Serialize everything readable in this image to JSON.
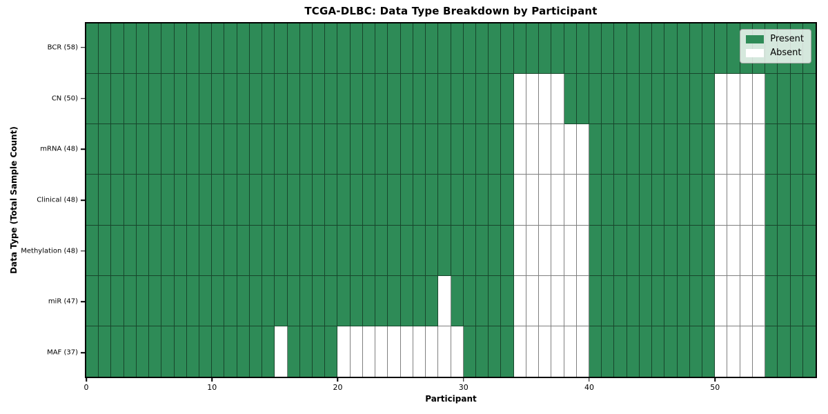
{
  "title": "TCGA-DLBC: Data Type Breakdown by Participant",
  "xlabel": "Participant",
  "ylabel": "Data Type (Total Sample Count)",
  "legend": {
    "present_label": "Present",
    "absent_label": "Absent"
  },
  "colors": {
    "present": "#2E8B57",
    "absent": "#FFFFFF",
    "cell_border": "rgba(0,0,0,0.5)",
    "spine": "#000000",
    "legend_bg": "rgba(255,255,255,0.8)",
    "legend_border": "#A6A6A6"
  },
  "chart_data": {
    "type": "heatmap",
    "title": "TCGA-DLBC: Data Type Breakdown by Participant",
    "xlabel": "Participant",
    "ylabel": "Data Type (Total Sample Count)",
    "x_ticks": [
      0,
      10,
      20,
      30,
      40,
      50
    ],
    "x_range": [
      0,
      58
    ],
    "n_participants": 58,
    "cell_values": {
      "present": 1,
      "absent": 0
    },
    "legend_entries": [
      {
        "label": "Present",
        "color": "#2E8B57"
      },
      {
        "label": "Absent",
        "color": "#FFFFFF"
      }
    ],
    "rows": [
      {
        "data_type": "BCR",
        "label": "BCR (58)",
        "total": 58,
        "absent_participants": []
      },
      {
        "data_type": "CN",
        "label": "CN (50)",
        "total": 50,
        "absent_participants": [
          34,
          35,
          36,
          37,
          50,
          51,
          52,
          53
        ]
      },
      {
        "data_type": "mRNA",
        "label": "mRNA (48)",
        "total": 48,
        "absent_participants": [
          34,
          35,
          36,
          37,
          38,
          39,
          50,
          51,
          52,
          53
        ]
      },
      {
        "data_type": "Clinical",
        "label": "Clinical (48)",
        "total": 48,
        "absent_participants": [
          34,
          35,
          36,
          37,
          38,
          39,
          50,
          51,
          52,
          53
        ]
      },
      {
        "data_type": "Methylation",
        "label": "Methylation (48)",
        "total": 48,
        "absent_participants": [
          34,
          35,
          36,
          37,
          38,
          39,
          50,
          51,
          52,
          53
        ]
      },
      {
        "data_type": "miR",
        "label": "miR (47)",
        "total": 47,
        "absent_participants": [
          28,
          34,
          35,
          36,
          37,
          38,
          39,
          50,
          51,
          52,
          53
        ]
      },
      {
        "data_type": "MAF",
        "label": "MAF (37)",
        "total": 37,
        "absent_participants": [
          15,
          20,
          21,
          22,
          23,
          24,
          25,
          26,
          27,
          28,
          29,
          34,
          35,
          36,
          37,
          38,
          39,
          50,
          51,
          52,
          53
        ]
      }
    ]
  }
}
